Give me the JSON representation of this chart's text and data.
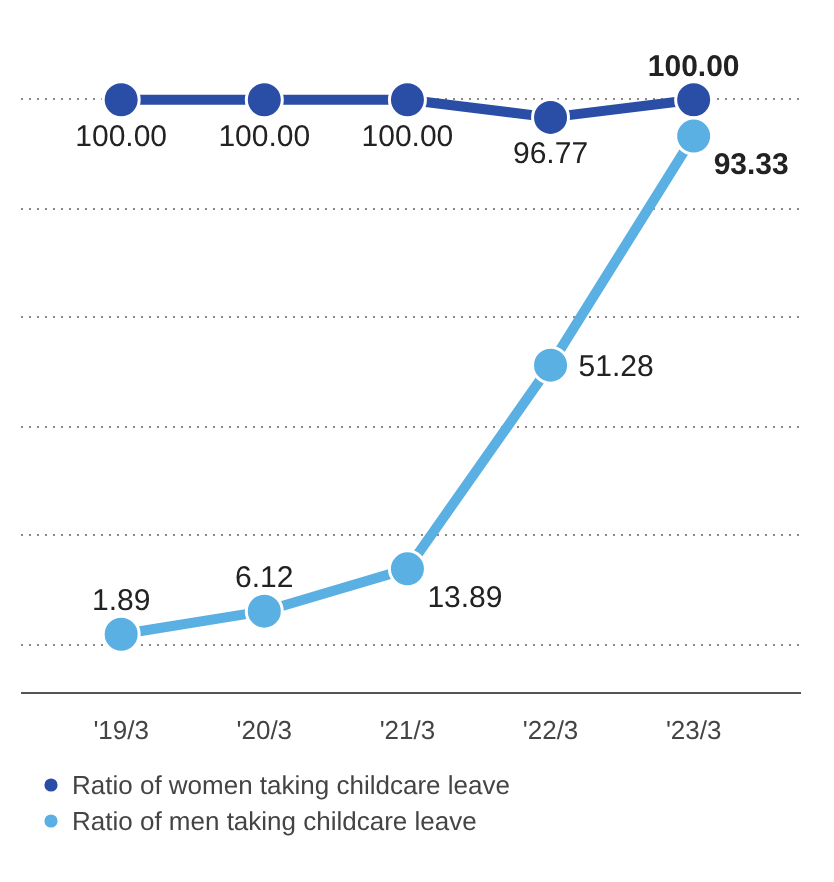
{
  "chart_data": {
    "type": "line",
    "categories": [
      "'19/3",
      "'20/3",
      "'21/3",
      "'22/3",
      "'23/3"
    ],
    "series": [
      {
        "name": "Ratio of women taking childcare leave",
        "color": "#2a4ea6",
        "values": [
          100.0,
          100.0,
          100.0,
          96.77,
          100.0
        ],
        "value_labels": [
          "100.00",
          "100.00",
          "100.00",
          "96.77",
          "100.00"
        ]
      },
      {
        "name": "Ratio of men taking childcare leave",
        "color": "#5aafe3",
        "values": [
          1.89,
          6.12,
          13.89,
          51.28,
          93.33
        ],
        "value_labels": [
          "1.89",
          "6.12",
          "13.89",
          "51.28",
          "93.33"
        ]
      }
    ],
    "tick_labels": "x",
    "grid": "y",
    "marker": "circle",
    "line_style": "solid",
    "legend": "bottom"
  }
}
